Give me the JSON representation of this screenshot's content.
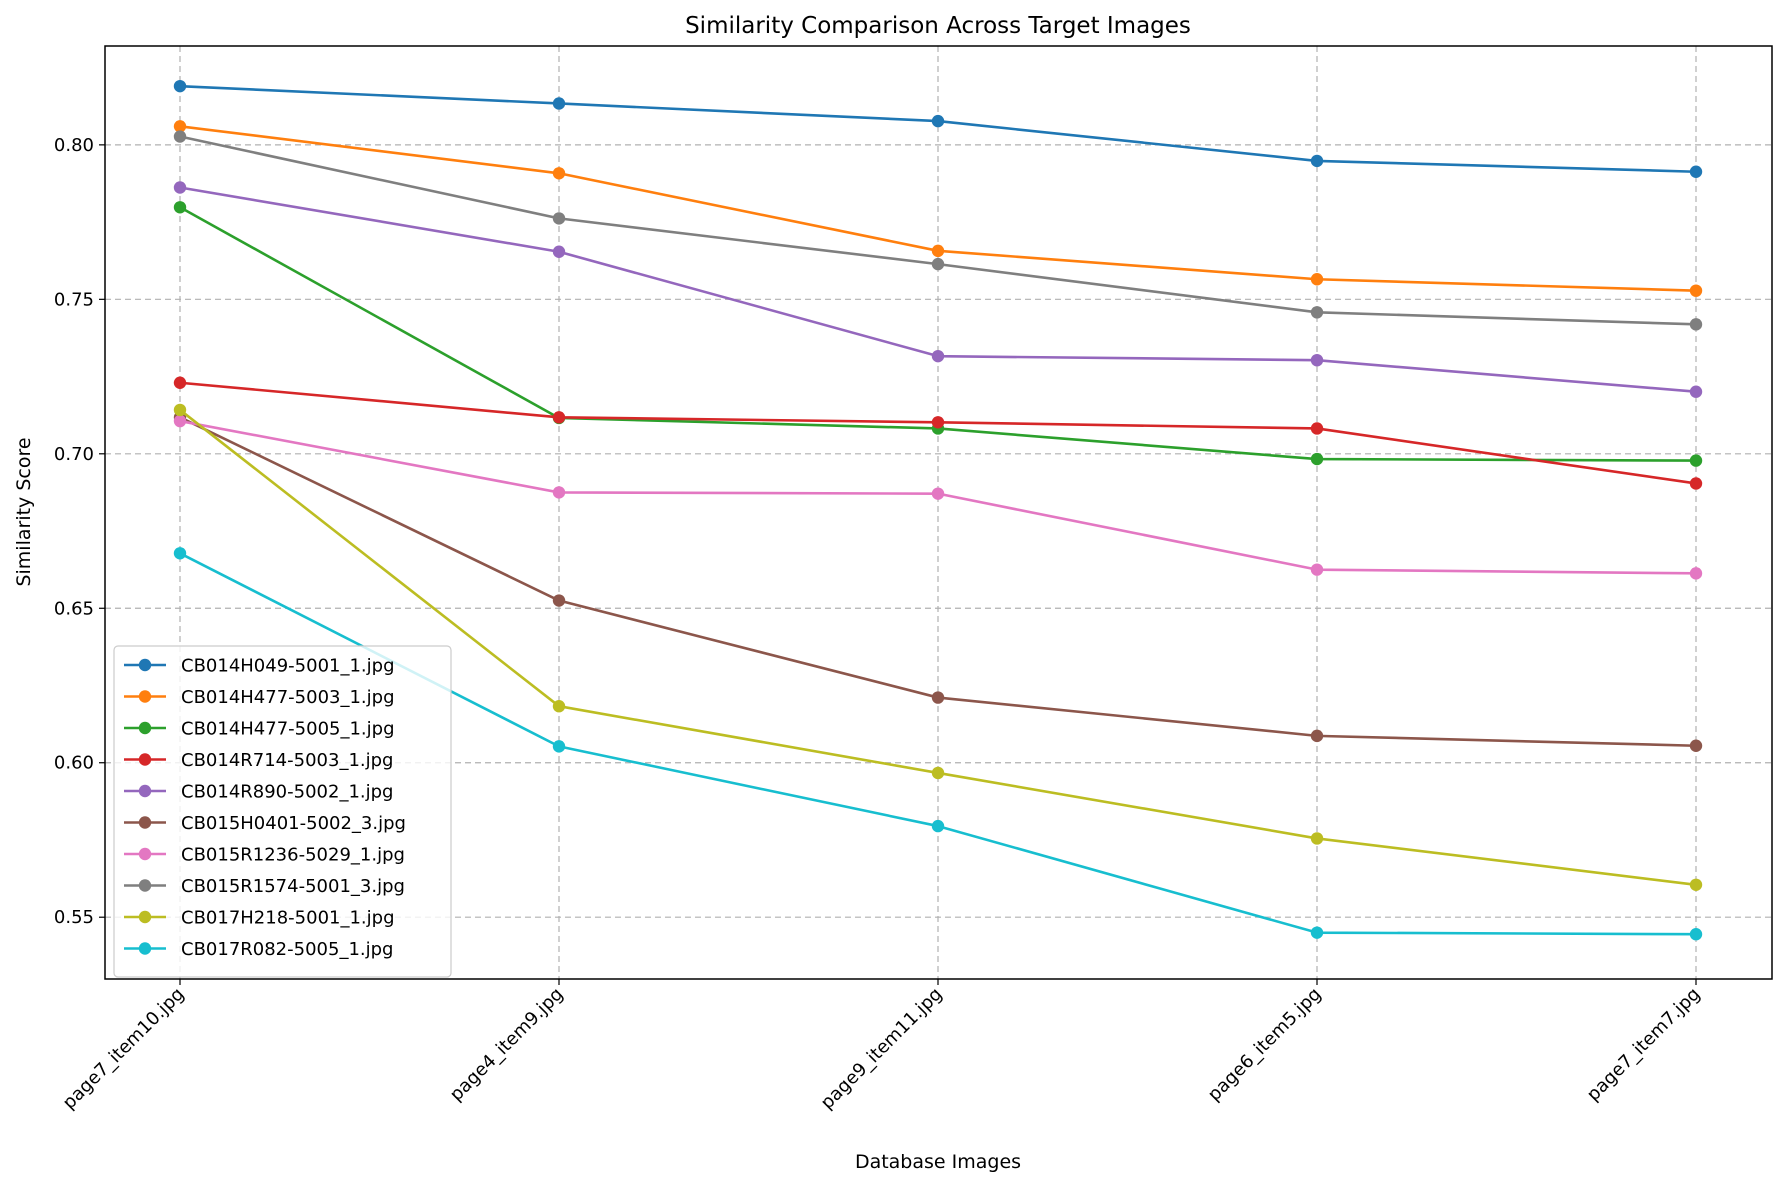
{
  "chart_data": {
    "type": "line",
    "title": "Similarity Comparison Across Target Images",
    "xlabel": "Database Images",
    "ylabel": "Similarity Score",
    "categories": [
      "page7_item10.jpg",
      "page4_item9.jpg",
      "page9_item11.jpg",
      "page6_item5.jpg",
      "page7_item7.jpg"
    ],
    "ylim": [
      0.53,
      0.832
    ],
    "yticks": [
      "0.55",
      "0.60",
      "0.65",
      "0.70",
      "0.75",
      "0.80"
    ],
    "grid": true,
    "legend_position": "lower-left",
    "series": [
      {
        "name": "CB014H049-5001_1.jpg",
        "color": "#1f77b4",
        "values": [
          0.819,
          0.8134,
          0.8077,
          0.7948,
          0.7913
        ]
      },
      {
        "name": "CB014H477-5003_1.jpg",
        "color": "#ff7f0e",
        "values": [
          0.806,
          0.7908,
          0.7657,
          0.7565,
          0.7528
        ]
      },
      {
        "name": "CB014H477-5005_1.jpg",
        "color": "#2ca02c",
        "values": [
          0.7798,
          0.7116,
          0.7082,
          0.6983,
          0.6978
        ]
      },
      {
        "name": "CB014R714-5003_1.jpg",
        "color": "#d62728",
        "values": [
          0.723,
          0.7118,
          0.7102,
          0.7082,
          0.6904
        ]
      },
      {
        "name": "CB014R890-5002_1.jpg",
        "color": "#9467bd",
        "values": [
          0.7862,
          0.7654,
          0.7316,
          0.7303,
          0.7201
        ]
      },
      {
        "name": "CB015H0401-5002_3.jpg",
        "color": "#8c564b",
        "values": [
          0.7118,
          0.6525,
          0.6211,
          0.6087,
          0.6055
        ]
      },
      {
        "name": "CB015R1236-5029_1.jpg",
        "color": "#e377c2",
        "values": [
          0.7106,
          0.6875,
          0.6871,
          0.6625,
          0.6613
        ]
      },
      {
        "name": "CB015R1574-5001_3.jpg",
        "color": "#7f7f7f",
        "values": [
          0.8027,
          0.7762,
          0.7614,
          0.7458,
          0.7419
        ]
      },
      {
        "name": "CB017H218-5001_1.jpg",
        "color": "#bcbd22",
        "values": [
          0.7142,
          0.6183,
          0.5967,
          0.5755,
          0.5605
        ]
      },
      {
        "name": "CB017R082-5005_1.jpg",
        "color": "#17becf",
        "values": [
          0.6678,
          0.6053,
          0.5795,
          0.545,
          0.5445
        ]
      }
    ]
  }
}
